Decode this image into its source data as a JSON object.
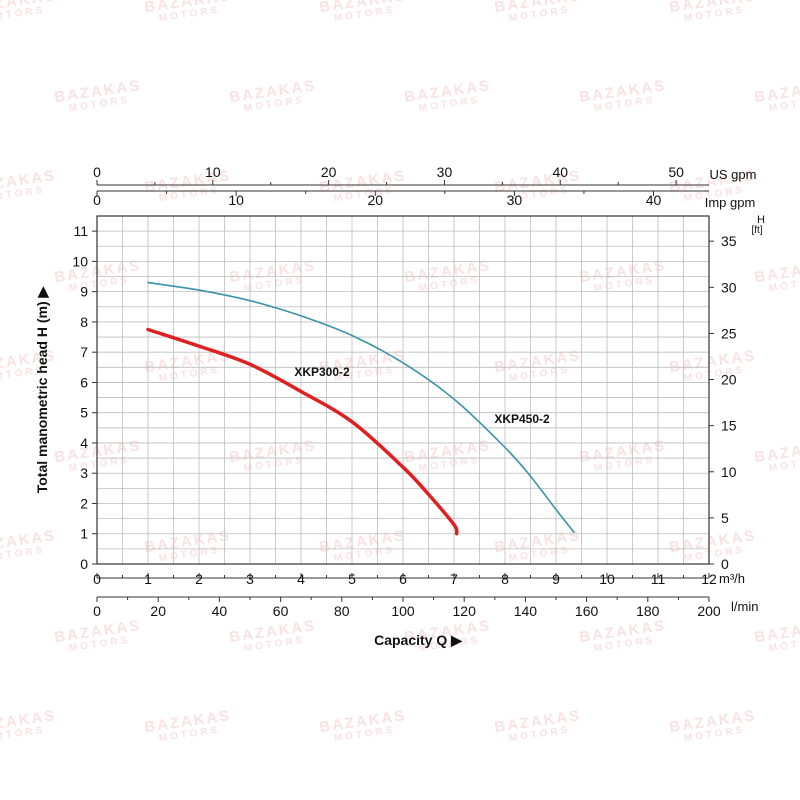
{
  "watermark": {
    "line1": "BAZAKAS",
    "line2": "MOTORS"
  },
  "chart_data": {
    "type": "line",
    "xlabel": "Capacity Q",
    "ylabel": "Total manometric head H (m)",
    "xlim": [
      0,
      12
    ],
    "ylim": [
      0,
      11.5
    ],
    "grid": true,
    "axes": {
      "x_m3h": {
        "unit": "m³/h",
        "ticks": [
          "0",
          "1",
          "2",
          "3",
          "4",
          "5",
          "6",
          "7",
          "8",
          "9",
          "10",
          "11",
          "12"
        ]
      },
      "x_lmin": {
        "unit": "l/min",
        "ticks": [
          "0",
          "20",
          "40",
          "60",
          "80",
          "100",
          "120",
          "140",
          "160",
          "180",
          "200"
        ]
      },
      "x_usgpm": {
        "unit": "US gpm",
        "ticks": [
          "0",
          "10",
          "20",
          "30",
          "40",
          "50"
        ]
      },
      "x_impgpm": {
        "unit": "Imp gpm",
        "ticks": [
          "0",
          "10",
          "20",
          "30",
          "40"
        ]
      },
      "y_m": {
        "ticks": [
          "0",
          "1",
          "2",
          "3",
          "4",
          "5",
          "6",
          "7",
          "8",
          "9",
          "10",
          "11"
        ]
      },
      "y_ft": {
        "unit_line1": "H",
        "unit_line2": "[ft]",
        "ticks": [
          "0",
          "5",
          "10",
          "15",
          "20",
          "25",
          "30",
          "35"
        ]
      }
    },
    "series": [
      {
        "name": "XKP300-2",
        "color": "#e02020",
        "x": [
          1.0,
          2.0,
          3.0,
          4.0,
          5.0,
          6.0,
          6.5,
          7.0,
          7.05
        ],
        "y": [
          7.75,
          7.2,
          6.6,
          5.7,
          4.7,
          3.2,
          2.3,
          1.3,
          1.0
        ]
      },
      {
        "name": "XKP450-2",
        "color": "#3a93a8",
        "x": [
          1.0,
          2.0,
          3.0,
          4.0,
          5.0,
          6.0,
          7.0,
          8.0,
          8.5,
          9.0,
          9.35
        ],
        "y": [
          9.3,
          9.05,
          8.7,
          8.2,
          7.55,
          6.65,
          5.45,
          3.85,
          2.9,
          1.8,
          1.05
        ]
      }
    ]
  }
}
